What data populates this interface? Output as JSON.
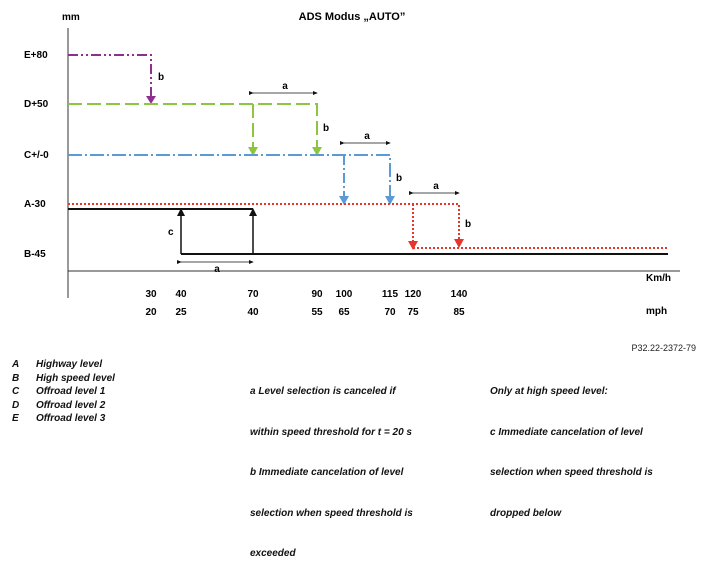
{
  "title": "ADS Modus „AUTO”",
  "y_axis_unit": "mm",
  "x_axis_unit_kmh": "Km/h",
  "x_axis_unit_mph": "mph",
  "levels": [
    "E+80",
    "D+50",
    "C+/-0",
    "A-30",
    "B-45"
  ],
  "kmh_ticks": [
    "30",
    "40",
    "70",
    "90",
    "100",
    "115",
    "120",
    "140"
  ],
  "mph_ticks": [
    "20",
    "25",
    "40",
    "55",
    "65",
    "70",
    "75",
    "85"
  ],
  "annotation_labels": {
    "a": "a",
    "b": "b",
    "c": "c"
  },
  "colors": {
    "E": "#8e2f8e",
    "D": "#8cc63f",
    "C": "#5b9bd5",
    "A": "#e8352c",
    "B": "#111111"
  },
  "reference_code": "P32.22-2372-79",
  "legend_left": [
    {
      "key": "A",
      "text": "Highway level"
    },
    {
      "key": "B",
      "text": "High speed level"
    },
    {
      "key": "C",
      "text": "Offroad level 1"
    },
    {
      "key": "D",
      "text": "Offroad level 2"
    },
    {
      "key": "E",
      "text": "Offroad level 3"
    }
  ],
  "legend_middle": [
    "a        Level selection is canceled if",
    "within speed threshold for t = 20 s",
    "b        Immediate cancelation of level",
    "selection when speed threshold is",
    "exceeded"
  ],
  "legend_right": [
    "Only at high speed level:",
    "c        Immediate cancelation of level",
    "selection when speed threshold is",
    "dropped below"
  ]
}
